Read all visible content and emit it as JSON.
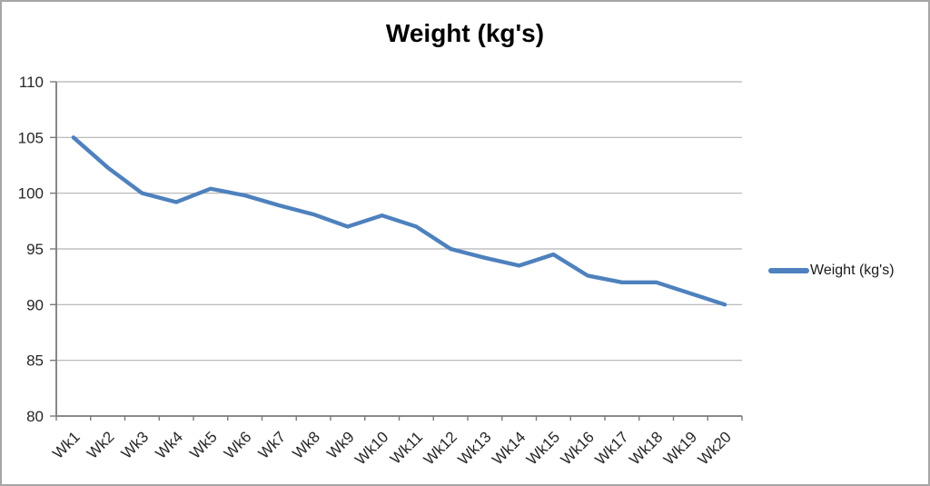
{
  "chart_data": {
    "type": "line",
    "title": "Weight (kg's)",
    "categories": [
      "Wk1",
      "Wk2",
      "Wk3",
      "Wk4",
      "Wk5",
      "Wk6",
      "Wk7",
      "Wk8",
      "Wk9",
      "Wk10",
      "Wk11",
      "Wk12",
      "Wk13",
      "Wk14",
      "Wk15",
      "Wk16",
      "Wk17",
      "Wk18",
      "Wk19",
      "Wk20"
    ],
    "series": [
      {
        "name": "Weight (kg's)",
        "color": "#4e81bd",
        "values": [
          105,
          102.3,
          100,
          99.2,
          100.4,
          99.8,
          98.9,
          98.1,
          97,
          98,
          97,
          95,
          94.2,
          93.5,
          94.5,
          92.6,
          92,
          92,
          91,
          90
        ]
      }
    ],
    "xlabel": "",
    "ylabel": "",
    "ylim": [
      80,
      110
    ],
    "yticks": [
      110,
      105,
      100,
      95,
      90,
      85,
      80
    ],
    "grid": true,
    "legend_position": "right",
    "colors": {
      "series_line": "#4e81bd",
      "gridline": "#b3b3b3",
      "axis": "#7a7a7a",
      "tick_label": "#262626",
      "title": "#000000",
      "border": "#a6a6a6",
      "background": "#ffffff"
    }
  }
}
